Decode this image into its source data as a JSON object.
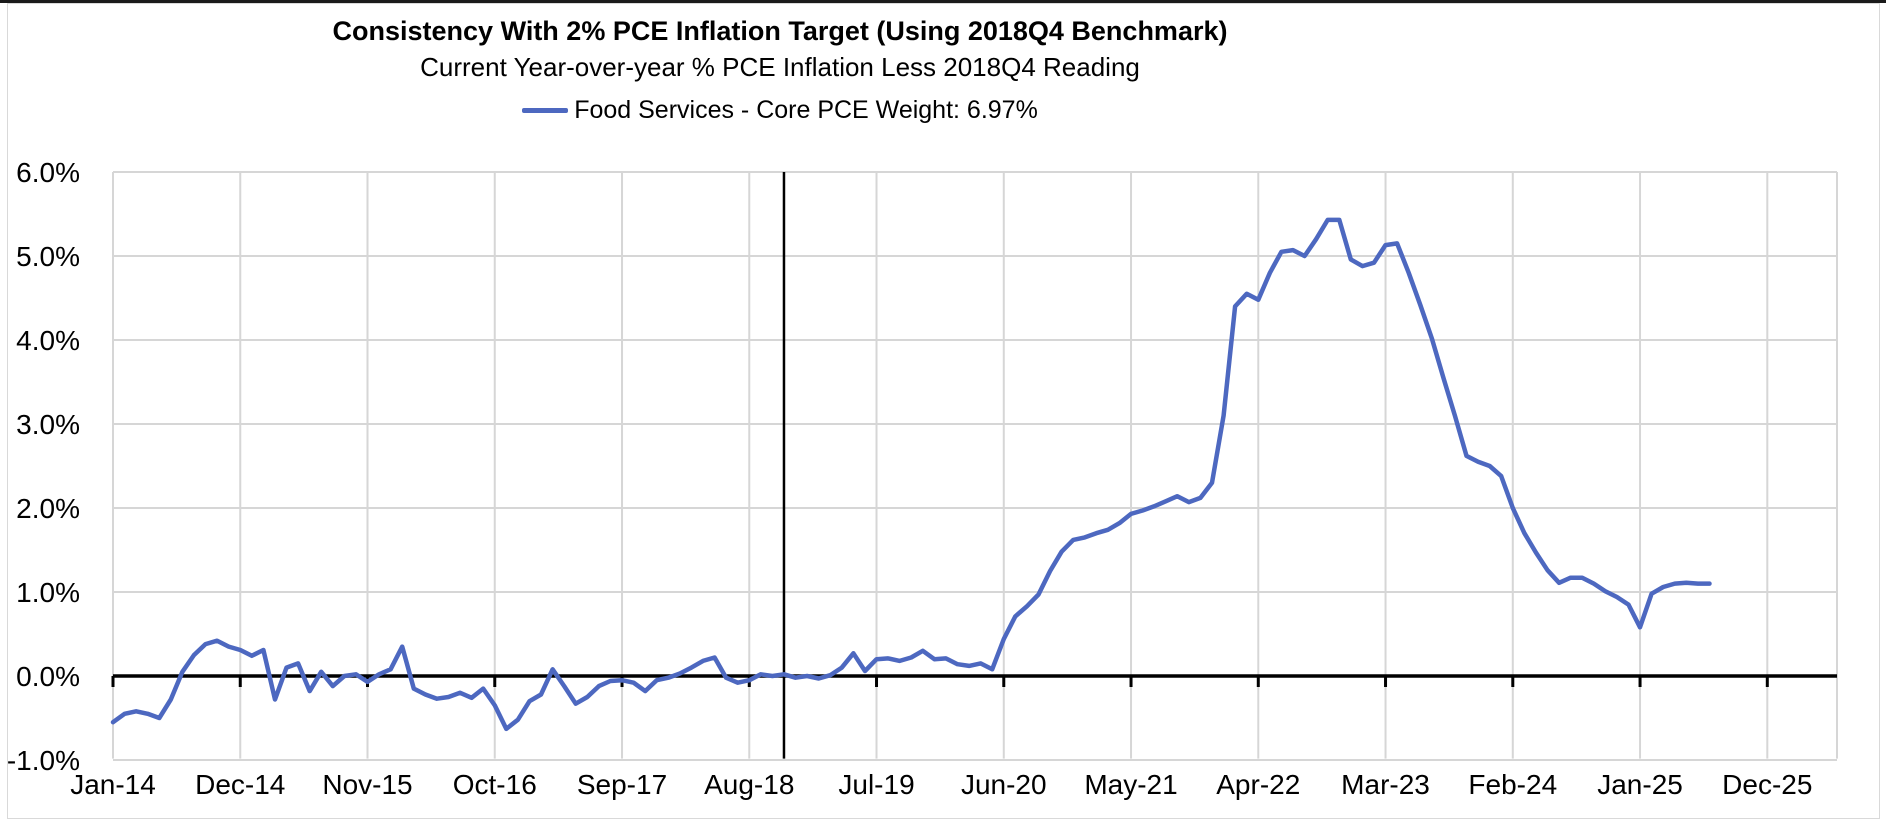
{
  "header": {
    "title": "Consistency With 2% PCE Inflation Target (Using 2018Q4 Benchmark)",
    "subtitle": "Current Year-over-year % PCE Inflation Less 2018Q4 Reading"
  },
  "legend": {
    "label": "Food Services - Core PCE Weight: 6.97%",
    "swatch_color": "#4d68c0"
  },
  "chart_data": {
    "type": "line",
    "title": "Consistency With 2% PCE Inflation Target (Using 2018Q4 Benchmark)",
    "subtitle": "Current Year-over-year % PCE Inflation Less 2018Q4 Reading",
    "ylabel": "",
    "xlabel": "",
    "y_range": [
      -1.0,
      6.0
    ],
    "y_tick_step": 1.0,
    "y_tick_labels": [
      "6.0%",
      "5.0%",
      "4.0%",
      "3.0%",
      "2.0%",
      "1.0%",
      "0.0%",
      "-1.0%"
    ],
    "y_tick_values": [
      6,
      5,
      4,
      3,
      2,
      1,
      0,
      -1
    ],
    "x_tick_labels": [
      "Jan-14",
      "Dec-14",
      "Nov-15",
      "Oct-16",
      "Sep-17",
      "Aug-18",
      "Jul-19",
      "Jun-20",
      "May-21",
      "Apr-22",
      "Mar-23",
      "Feb-24",
      "Jan-25",
      "Dec-25"
    ],
    "x_tick_month_indices": [
      0,
      11,
      22,
      33,
      44,
      55,
      66,
      77,
      88,
      99,
      110,
      121,
      132,
      143
    ],
    "x_axis_total_months": 144,
    "grid": true,
    "gridline_color": "#d6d6d6",
    "zero_line_color": "#000000",
    "benchmark_vline_month": "Nov-18",
    "benchmark_vline_month_index": 58,
    "legend_position": "top",
    "series": [
      {
        "name": "Food Services - Core PCE Weight: 6.97%",
        "color": "#4d68c0",
        "start_month": "Jan-14",
        "frequency": "monthly",
        "values": [
          -0.55,
          -0.45,
          -0.42,
          -0.45,
          -0.5,
          -0.28,
          0.05,
          0.25,
          0.38,
          0.42,
          0.35,
          0.31,
          0.24,
          0.31,
          -0.28,
          0.1,
          0.15,
          -0.18,
          0.05,
          -0.12,
          0.0,
          0.02,
          -0.07,
          0.02,
          0.08,
          0.35,
          -0.15,
          -0.22,
          -0.27,
          -0.25,
          -0.2,
          -0.26,
          -0.15,
          -0.35,
          -0.63,
          -0.52,
          -0.3,
          -0.22,
          0.08,
          -0.12,
          -0.33,
          -0.25,
          -0.12,
          -0.06,
          -0.05,
          -0.08,
          -0.18,
          -0.05,
          -0.02,
          0.03,
          0.1,
          0.18,
          0.22,
          -0.02,
          -0.08,
          -0.05,
          0.02,
          0.0,
          0.02,
          -0.02,
          0.0,
          -0.03,
          0.01,
          0.1,
          0.27,
          0.06,
          0.2,
          0.21,
          0.18,
          0.22,
          0.3,
          0.2,
          0.21,
          0.14,
          0.12,
          0.15,
          0.08,
          0.44,
          0.71,
          0.83,
          0.97,
          1.25,
          1.48,
          1.62,
          1.65,
          1.7,
          1.74,
          1.82,
          1.93,
          1.97,
          2.02,
          2.08,
          2.14,
          2.07,
          2.12,
          2.3,
          3.1,
          4.4,
          4.55,
          4.48,
          4.8,
          5.05,
          5.07,
          5.0,
          5.2,
          5.43,
          5.43,
          4.96,
          4.88,
          4.92,
          5.13,
          5.15,
          4.8,
          4.42,
          4.02,
          3.55,
          3.1,
          2.62,
          2.55,
          2.5,
          2.38,
          2.0,
          1.7,
          1.47,
          1.26,
          1.11,
          1.17,
          1.17,
          1.1,
          1.01,
          0.94,
          0.85,
          0.58,
          0.98,
          1.06,
          1.1,
          1.11,
          1.1,
          1.1
        ]
      }
    ]
  }
}
